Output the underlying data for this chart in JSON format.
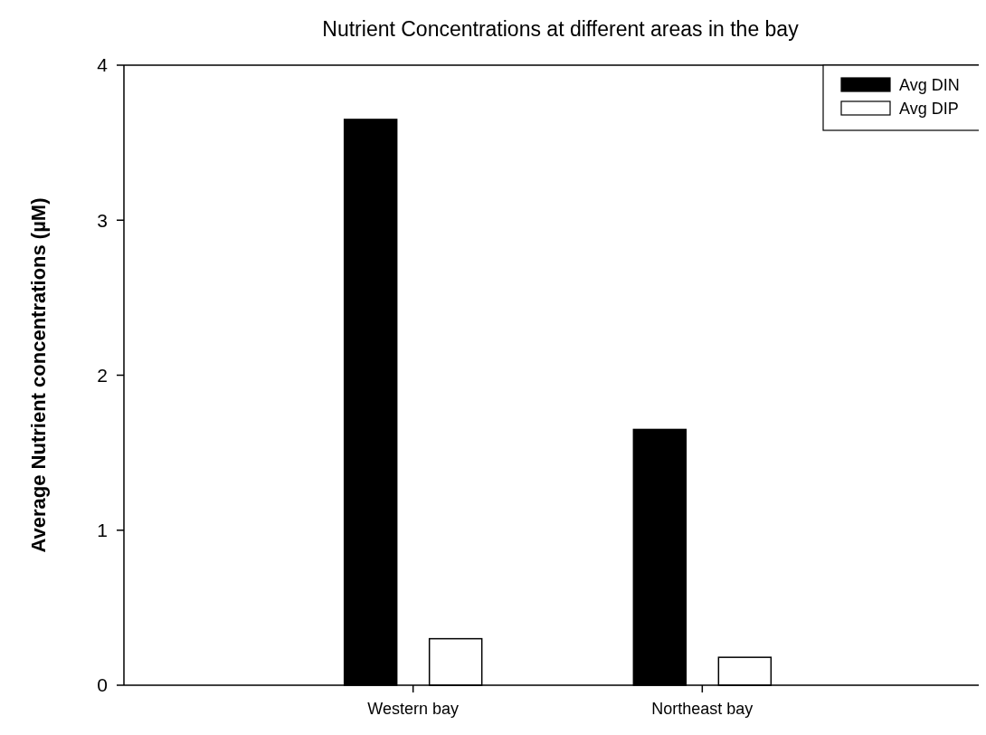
{
  "chart_data": {
    "type": "bar",
    "title": "Nutrient Concentrations at different areas in the bay",
    "ylabel": "Average Nutrient concentrations (µM)",
    "categories": [
      "Western bay",
      "Northeast bay"
    ],
    "series": [
      {
        "name": "Avg DIN",
        "color": "#000000",
        "values": [
          3.65,
          1.65
        ]
      },
      {
        "name": "Avg DIP",
        "color": "#ffffff",
        "values": [
          0.3,
          0.18
        ]
      }
    ],
    "ylim": [
      0,
      4
    ],
    "yticks": [
      0,
      1,
      2,
      3,
      4
    ],
    "legend": "top right"
  }
}
